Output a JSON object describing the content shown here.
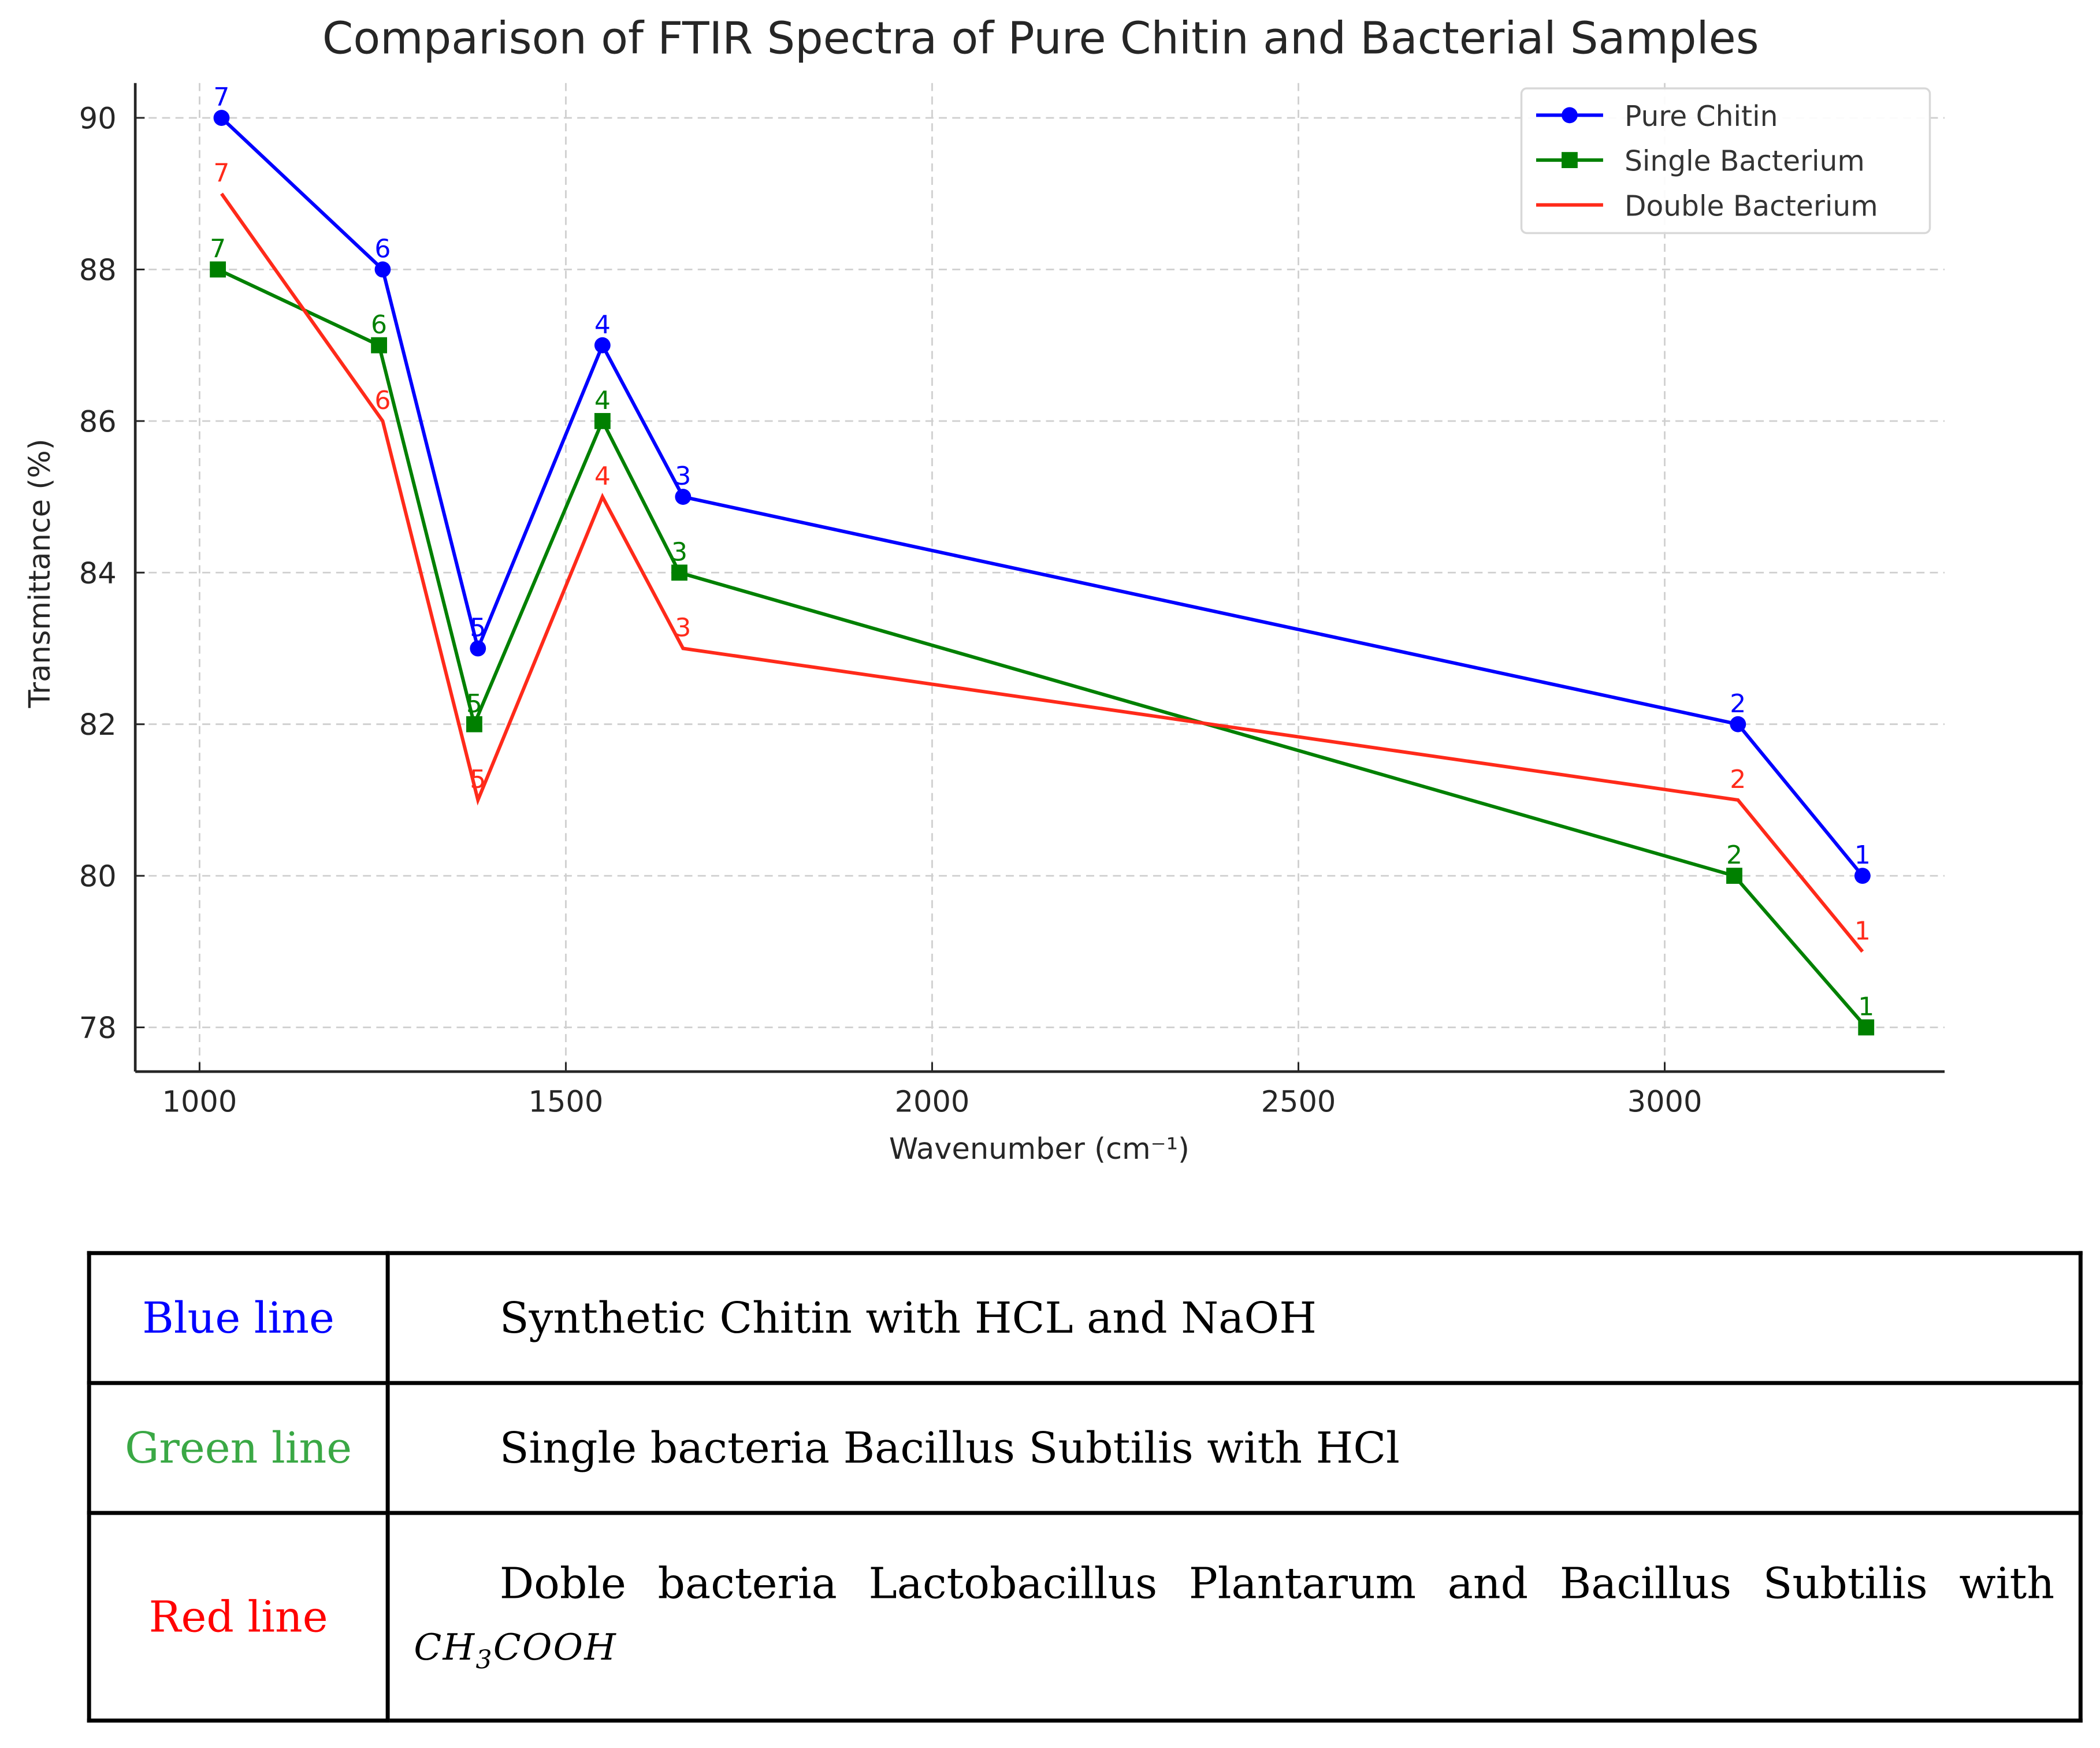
{
  "chart_data": {
    "type": "line",
    "title": "Comparison of FTIR Spectra of Pure Chitin and Bacterial Samples",
    "xlabel": "Wavenumber (cm⁻¹)",
    "ylabel": "Transmittance (%)",
    "xlim": [
      910,
      3390
    ],
    "ylim": [
      77.4,
      91.0
    ],
    "xticks": [
      1000,
      1500,
      2000,
      2500,
      3000
    ],
    "yticks": [
      78,
      80,
      82,
      84,
      86,
      88,
      90
    ],
    "grid": true,
    "legend_position": "upper right",
    "series": [
      {
        "name": "Pure Chitin",
        "color": "#0000ff",
        "marker": "circle",
        "x": [
          3270,
          3100,
          1660,
          1550,
          1380,
          1250,
          1030
        ],
        "y": [
          80,
          82,
          85,
          87,
          83,
          88,
          90
        ],
        "point_labels": [
          "1",
          "2",
          "3",
          "4",
          "5",
          "6",
          "7"
        ]
      },
      {
        "name": "Single Bacterium",
        "color": "#008000",
        "marker": "square",
        "x": [
          3275,
          3095,
          1655,
          1550,
          1375,
          1245,
          1025
        ],
        "y": [
          78,
          80,
          84,
          86,
          82,
          87,
          88
        ],
        "point_labels": [
          "1",
          "2",
          "3",
          "4",
          "5",
          "6",
          "7"
        ]
      },
      {
        "name": "Double Bacterium",
        "color": "#ff2a1a",
        "marker": "none",
        "x": [
          3270,
          3100,
          1660,
          1550,
          1380,
          1250,
          1030
        ],
        "y": [
          79,
          81,
          83,
          85,
          81,
          86,
          89
        ],
        "point_labels": [
          "1",
          "2",
          "3",
          "4",
          "5",
          "6",
          "7"
        ]
      }
    ]
  },
  "legend_table": {
    "rows": [
      {
        "key": "Blue line",
        "key_color": "#0000ff",
        "description": "Synthetic Chitin with HCL and NaOH"
      },
      {
        "key": "Green line",
        "key_color": "#3aa845",
        "description": "Single bacteria Bacillus Subtilis with HCl"
      },
      {
        "key": "Red line",
        "key_color": "#ff0000",
        "description": "Doble  bacteria   Lactobacillus  Plantarum  and  Bacillus  Subtilis  with",
        "formula_main": "CH",
        "formula_sub": "3",
        "formula_rest": "COOH"
      }
    ]
  }
}
